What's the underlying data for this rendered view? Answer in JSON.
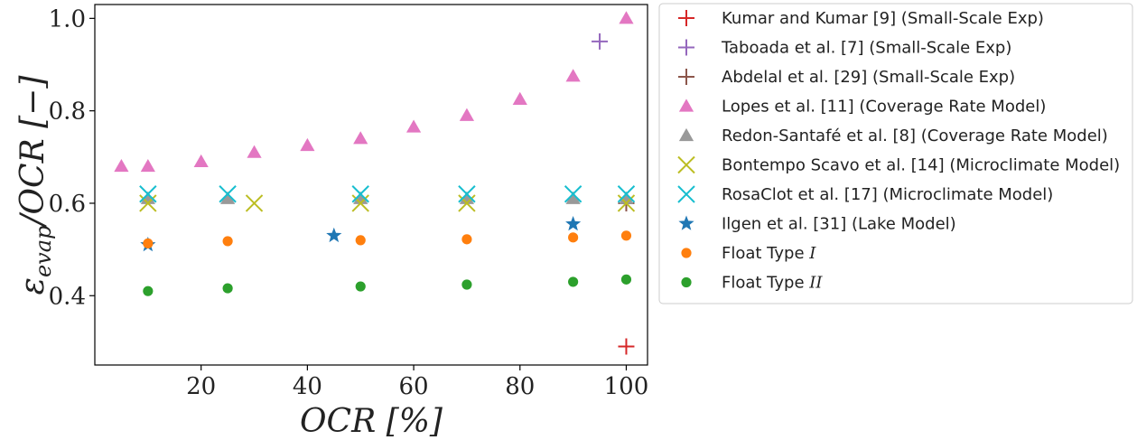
{
  "chart_data": {
    "type": "scatter",
    "xlabel": "OCR [%]",
    "ylabel": "ε_evap/OCR [−]",
    "ylabel_main": "ε",
    "ylabel_sub": "evap",
    "ylabel_rest": "/OCR [−]",
    "xlim": [
      0,
      104
    ],
    "ylim": [
      0.25,
      1.03
    ],
    "xticks": [
      20,
      40,
      60,
      80,
      100
    ],
    "yticks": [
      0.4,
      0.6,
      0.8,
      1.0
    ],
    "xtick_labels": [
      "20",
      "40",
      "60",
      "80",
      "100"
    ],
    "ytick_labels": [
      "0.4",
      "0.6",
      "0.8",
      "1.0"
    ],
    "grid": false,
    "legend_position": "outside-right",
    "series": [
      {
        "name": "Kumar and Kumar [9] (Small-Scale Exp)",
        "marker": "plus",
        "color": "#d62728",
        "points": [
          [
            100,
            0.29
          ]
        ]
      },
      {
        "name": "Taboada et al. [7] (Small-Scale Exp)",
        "marker": "plus",
        "color": "#9467bd",
        "points": [
          [
            95,
            0.95
          ]
        ]
      },
      {
        "name": "Abdelal et al. [29] (Small-Scale Exp)",
        "marker": "plus",
        "color": "#8c564b",
        "points": [
          [
            100,
            0.6
          ]
        ]
      },
      {
        "name": "Lopes et al. [11] (Coverage Rate Model)",
        "marker": "triangle",
        "color": "#e377c2",
        "points": [
          [
            5,
            0.68
          ],
          [
            10,
            0.68
          ],
          [
            20,
            0.69
          ],
          [
            30,
            0.71
          ],
          [
            40,
            0.725
          ],
          [
            50,
            0.74
          ],
          [
            60,
            0.765
          ],
          [
            70,
            0.79
          ],
          [
            80,
            0.825
          ],
          [
            90,
            0.875
          ],
          [
            100,
            1.0
          ]
        ]
      },
      {
        "name": "Redon-Santafé et al. [8] (Coverage Rate Model)",
        "marker": "triangle",
        "color": "#999999",
        "points": [
          [
            10,
            0.61
          ],
          [
            25,
            0.61
          ],
          [
            50,
            0.61
          ],
          [
            70,
            0.61
          ],
          [
            90,
            0.61
          ],
          [
            100,
            0.61
          ]
        ]
      },
      {
        "name": "Bontempo Scavo et al. [14] (Microclimate Model)",
        "marker": "x",
        "color": "#bcbd22",
        "points": [
          [
            10,
            0.6
          ],
          [
            30,
            0.6
          ],
          [
            50,
            0.6
          ],
          [
            70,
            0.6
          ],
          [
            100,
            0.6
          ]
        ]
      },
      {
        "name": "RosaClot et al. [17] (Microclimate Model)",
        "marker": "x",
        "color": "#17becf",
        "points": [
          [
            10,
            0.62
          ],
          [
            25,
            0.62
          ],
          [
            50,
            0.62
          ],
          [
            70,
            0.62
          ],
          [
            90,
            0.62
          ],
          [
            100,
            0.62
          ]
        ]
      },
      {
        "name": "Ilgen et al. [31] (Lake Model)",
        "marker": "star",
        "color": "#1f77b4",
        "points": [
          [
            10,
            0.51
          ],
          [
            45,
            0.53
          ],
          [
            90,
            0.555
          ]
        ]
      },
      {
        "name": "Float Type I",
        "name_text": "Float Type ",
        "name_math": "I",
        "marker": "circle",
        "color": "#ff7f0e",
        "points": [
          [
            10,
            0.513
          ],
          [
            25,
            0.518
          ],
          [
            50,
            0.52
          ],
          [
            70,
            0.522
          ],
          [
            90,
            0.526
          ],
          [
            100,
            0.53
          ]
        ]
      },
      {
        "name": "Float Type II",
        "name_text": "Float Type ",
        "name_math": "II",
        "marker": "circle",
        "color": "#2ca02c",
        "points": [
          [
            10,
            0.41
          ],
          [
            25,
            0.416
          ],
          [
            50,
            0.42
          ],
          [
            70,
            0.424
          ],
          [
            90,
            0.43
          ],
          [
            100,
            0.435
          ]
        ]
      }
    ]
  }
}
